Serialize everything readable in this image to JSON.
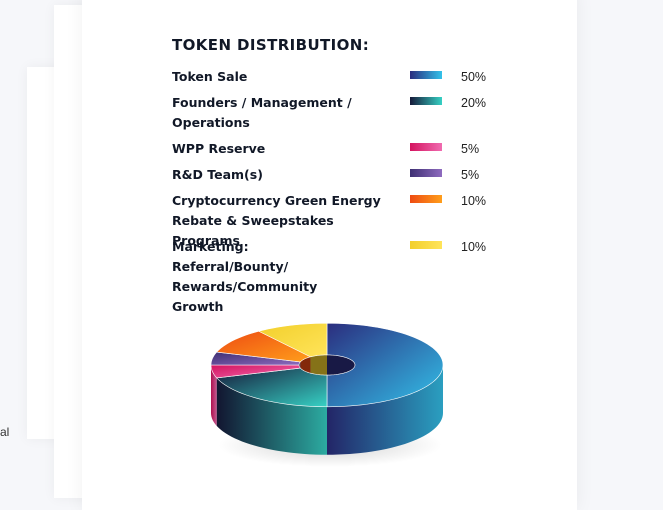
{
  "side_text": "al",
  "chart_data": {
    "type": "pie",
    "title": "TOKEN DISTRIBUTION:",
    "legend_position": "top",
    "slices": [
      {
        "label": "Token Sale",
        "value_label": "50%",
        "value": 50,
        "gradient": [
          "#2b2d7e",
          "#33c2ea"
        ]
      },
      {
        "label": "Founders / Management / Operations",
        "value_label": "20%",
        "value": 20,
        "gradient": [
          "#161a3a",
          "#36d1c4"
        ]
      },
      {
        "label": "WPP Reserve",
        "value_label": "5%",
        "value": 5,
        "gradient": [
          "#d4135f",
          "#f06bb0"
        ]
      },
      {
        "label": "R&D Team(s)",
        "value_label": "5%",
        "value": 5,
        "gradient": [
          "#3e2f73",
          "#8e6bbf"
        ]
      },
      {
        "label": "Cryptocurrency Green Energy Rebate & Sweepstakes Programs",
        "value_label": "10%",
        "value": 10,
        "gradient": [
          "#ee4b12",
          "#ff9e1b"
        ]
      },
      {
        "label": "Marketing: Referral/Bounty/ Rewards/Community Growth",
        "value_label": "10%",
        "value": 10,
        "gradient": [
          "#f2cf2b",
          "#ffe45a"
        ]
      }
    ]
  }
}
